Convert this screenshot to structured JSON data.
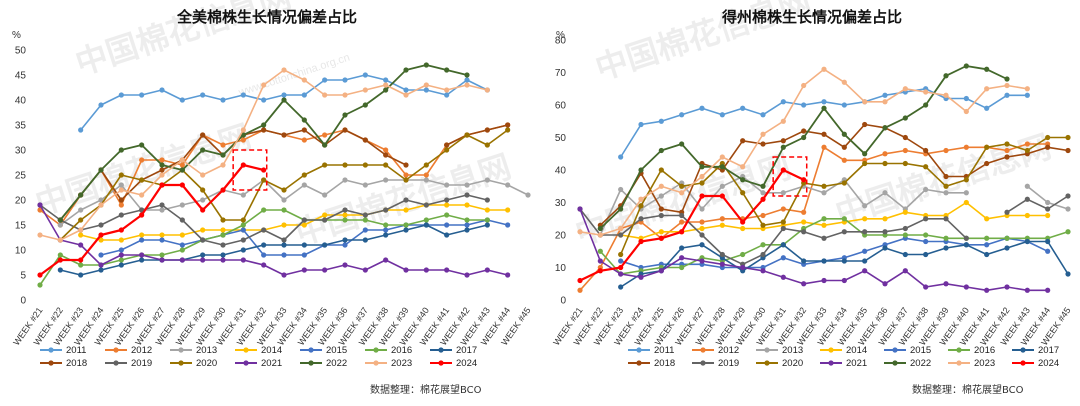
{
  "colors": {
    "2011": "#5b9bd5",
    "2012": "#ed7d31",
    "2013": "#a5a5a5",
    "2014": "#ffc000",
    "2015": "#4472c4",
    "2016": "#70ad47",
    "2017": "#255e91",
    "2018": "#9e480e",
    "2019": "#636363",
    "2020": "#997300",
    "2021": "#7030a0",
    "2022": "#43682b",
    "2023": "#f4b183",
    "2024": "#ff0000"
  },
  "watermark": {
    "text": "中国棉花信息网",
    "url": "www.cottonchina.org.cn"
  },
  "chart_data": [
    {
      "type": "line",
      "title": "全美棉株生长情况偏差占比",
      "unit": "%",
      "ylim": [
        0,
        50
      ],
      "yticks": [
        0,
        5,
        10,
        15,
        20,
        25,
        30,
        35,
        40,
        45,
        50
      ],
      "x": [
        "WEEK #21",
        "WEEK #22",
        "WEEK #23",
        "WEEK #24",
        "WEEK #25",
        "WEEK #26",
        "WEEK #27",
        "WEEK #28",
        "WEEK #29",
        "WEEK #30",
        "WEEK #31",
        "WEEK #32",
        "WEEK #33",
        "WEEK #34",
        "WEEK #35",
        "WEEK #36",
        "WEEK #37",
        "WEEK #38",
        "WEEK #39",
        "WEEK #40",
        "WEEK #41",
        "WEEK #42",
        "WEEK #43",
        "WEEK #44",
        "WEEK #45"
      ],
      "highlight": {
        "x_from": "WEEK #31",
        "x_to": "WEEK #32",
        "y_from": 22,
        "y_to": 30
      },
      "series": [
        {
          "name": "2011",
          "values": [
            null,
            null,
            34,
            39,
            41,
            41,
            42,
            40,
            41,
            40,
            41,
            40,
            41,
            41,
            44,
            44,
            45,
            44,
            42,
            42,
            41,
            44,
            42,
            null,
            null
          ]
        },
        {
          "name": "2012",
          "values": [
            18,
            15,
            21,
            26,
            19,
            28,
            28,
            27,
            33,
            31,
            32,
            34,
            33,
            32,
            33,
            34,
            32,
            30,
            25,
            25,
            31,
            33,
            34,
            35,
            null
          ]
        },
        {
          "name": "2013",
          "values": [
            null,
            15,
            18,
            20,
            23,
            18,
            18,
            19,
            20,
            22,
            21,
            24,
            20,
            23,
            21,
            24,
            23,
            24,
            24,
            24,
            23,
            23,
            24,
            23,
            21
          ]
        },
        {
          "name": "2014",
          "values": [
            null,
            null,
            13,
            12,
            12,
            13,
            13,
            13,
            14,
            14,
            14,
            14,
            15,
            15,
            17,
            17,
            17,
            18,
            18,
            19,
            19,
            19,
            18,
            18,
            null
          ]
        },
        {
          "name": "2015",
          "values": [
            null,
            null,
            null,
            9,
            10,
            12,
            12,
            11,
            12,
            13,
            14,
            9,
            9,
            9,
            11,
            11,
            14,
            14,
            15,
            15,
            15,
            15,
            16,
            15,
            null
          ]
        },
        {
          "name": "2016",
          "values": [
            3,
            9,
            7,
            7,
            8,
            9,
            9,
            10,
            12,
            13,
            15,
            18,
            18,
            16,
            16,
            16,
            16,
            15,
            15,
            16,
            17,
            16,
            16,
            null,
            null
          ]
        },
        {
          "name": "2017",
          "values": [
            null,
            6,
            5,
            6,
            7,
            8,
            8,
            8,
            9,
            9,
            10,
            11,
            11,
            11,
            11,
            12,
            12,
            13,
            14,
            15,
            13,
            14,
            15,
            null,
            null
          ]
        },
        {
          "name": "2018",
          "values": [
            null,
            16,
            21,
            26,
            20,
            24,
            26,
            28,
            33,
            29,
            33,
            34,
            33,
            34,
            31,
            34,
            32,
            29,
            27,
            null,
            31,
            33,
            34,
            35,
            null
          ]
        },
        {
          "name": "2019",
          "values": [
            19,
            16,
            14,
            15,
            17,
            18,
            19,
            16,
            12,
            11,
            12,
            14,
            12,
            16,
            16,
            18,
            17,
            18,
            20,
            19,
            20,
            21,
            20,
            null,
            null
          ]
        },
        {
          "name": "2020",
          "values": [
            null,
            12,
            16,
            19,
            25,
            24,
            23,
            26,
            22,
            16,
            16,
            24,
            22,
            25,
            27,
            27,
            27,
            27,
            24,
            27,
            30,
            33,
            31,
            34,
            null
          ]
        },
        {
          "name": "2021",
          "values": [
            19,
            12,
            11,
            7,
            9,
            9,
            8,
            8,
            8,
            8,
            8,
            7,
            5,
            6,
            6,
            7,
            6,
            8,
            6,
            6,
            6,
            5,
            6,
            5,
            null
          ]
        },
        {
          "name": "2022",
          "values": [
            null,
            16,
            21,
            26,
            30,
            31,
            27,
            26,
            30,
            29,
            33,
            35,
            40,
            36,
            31,
            37,
            39,
            42,
            46,
            47,
            46,
            45,
            null,
            null,
            null
          ]
        },
        {
          "name": "2023",
          "values": [
            13,
            12,
            14,
            19,
            22,
            21,
            25,
            28,
            25,
            27,
            34,
            43,
            46,
            44,
            41,
            41,
            42,
            43,
            41,
            43,
            42,
            43,
            42,
            null,
            null
          ]
        },
        {
          "name": "2024",
          "values": [
            5,
            8,
            8,
            13,
            14,
            17,
            23,
            23,
            18,
            22,
            27,
            26,
            null,
            null,
            null,
            null,
            null,
            null,
            null,
            null,
            null,
            null,
            null,
            null,
            null
          ]
        }
      ]
    },
    {
      "type": "line",
      "title": "得州棉株生长情况偏差占比",
      "unit": "%",
      "ylim": [
        0,
        80
      ],
      "yticks": [
        0,
        10,
        20,
        30,
        40,
        50,
        60,
        70,
        80
      ],
      "x": [
        "WEEK #21",
        "WEEK #22",
        "WEEK #23",
        "WEEK #24",
        "WEEK #25",
        "WEEK #26",
        "WEEK #27",
        "WEEK #28",
        "WEEK #29",
        "WEEK #30",
        "WEEK #31",
        "WEEK #32",
        "WEEK #33",
        "WEEK #34",
        "WEEK #35",
        "WEEK #36",
        "WEEK #37",
        "WEEK #38",
        "WEEK #39",
        "WEEK #40",
        "WEEK #41",
        "WEEK #42",
        "WEEK #43",
        "WEEK #44",
        "WEEK #45"
      ],
      "highlight": {
        "x_from": "WEEK #31",
        "x_to": "WEEK #32",
        "y_from": 32,
        "y_to": 44
      },
      "series": [
        {
          "name": "2011",
          "values": [
            null,
            null,
            44,
            54,
            55,
            57,
            59,
            57,
            59,
            57,
            61,
            60,
            61,
            60,
            61,
            63,
            64,
            65,
            62,
            62,
            59,
            63,
            63,
            null,
            null
          ]
        },
        {
          "name": "2012",
          "values": [
            3,
            10,
            22,
            24,
            19,
            24,
            24,
            25,
            25,
            26,
            28,
            27,
            47,
            43,
            43,
            45,
            46,
            45,
            46,
            47,
            47,
            46,
            48,
            48,
            null
          ]
        },
        {
          "name": "2013",
          "values": [
            null,
            20,
            34,
            28,
            32,
            36,
            28,
            35,
            38,
            33,
            33,
            35,
            33,
            37,
            29,
            33,
            28,
            34,
            33,
            33,
            null,
            null,
            35,
            30,
            28
          ]
        },
        {
          "name": "2014",
          "values": [
            null,
            null,
            20,
            19,
            21,
            21,
            22,
            23,
            22,
            22,
            23,
            24,
            23,
            24,
            25,
            25,
            27,
            26,
            26,
            30,
            25,
            26,
            26,
            26,
            null
          ]
        },
        {
          "name": "2015",
          "values": [
            null,
            null,
            12,
            10,
            11,
            11,
            11,
            10,
            10,
            10,
            13,
            11,
            12,
            13,
            15,
            17,
            19,
            18,
            18,
            17,
            17,
            19,
            18,
            15,
            null
          ]
        },
        {
          "name": "2016",
          "values": [
            null,
            15,
            8,
            9,
            10,
            10,
            13,
            12,
            14,
            17,
            17,
            22,
            25,
            25,
            20,
            20,
            20,
            20,
            19,
            19,
            19,
            19,
            19,
            19,
            21
          ]
        },
        {
          "name": "2017",
          "values": [
            null,
            null,
            4,
            8,
            9,
            16,
            17,
            13,
            9,
            13,
            17,
            12,
            12,
            12,
            12,
            16,
            14,
            14,
            16,
            17,
            14,
            16,
            18,
            18,
            8
          ]
        },
        {
          "name": "2018",
          "values": [
            null,
            23,
            29,
            39,
            28,
            27,
            42,
            40,
            49,
            48,
            49,
            52,
            51,
            47,
            54,
            53,
            50,
            46,
            38,
            38,
            42,
            44,
            45,
            47,
            46
          ]
        },
        {
          "name": "2019",
          "values": [
            28,
            20,
            20,
            25,
            26,
            26,
            20,
            14,
            11,
            14,
            22,
            21,
            19,
            21,
            21,
            21,
            22,
            25,
            25,
            19,
            null,
            27,
            31,
            28,
            32
          ]
        },
        {
          "name": "2020",
          "values": [
            null,
            null,
            14,
            29,
            40,
            35,
            36,
            42,
            33,
            23,
            24,
            36,
            35,
            36,
            42,
            42,
            42,
            41,
            35,
            37,
            47,
            48,
            46,
            50,
            50
          ]
        },
        {
          "name": "2021",
          "values": [
            28,
            12,
            8,
            7,
            9,
            13,
            12,
            11,
            10,
            9,
            7,
            5,
            6,
            6,
            9,
            5,
            9,
            4,
            5,
            4,
            3,
            4,
            3,
            3,
            null
          ]
        },
        {
          "name": "2022",
          "values": [
            null,
            22,
            28,
            40,
            46,
            48,
            41,
            41,
            37,
            35,
            47,
            50,
            59,
            51,
            45,
            53,
            56,
            60,
            69,
            72,
            71,
            68,
            null,
            null,
            null
          ]
        },
        {
          "name": "2023",
          "values": [
            21,
            20,
            22,
            31,
            35,
            33,
            38,
            44,
            41,
            51,
            55,
            66,
            71,
            67,
            61,
            61,
            65,
            64,
            63,
            58,
            65,
            66,
            65,
            null,
            null
          ]
        },
        {
          "name": "2024",
          "values": [
            6,
            9,
            10,
            18,
            19,
            21,
            32,
            32,
            24,
            31,
            40,
            37,
            null,
            null,
            null,
            null,
            null,
            null,
            null,
            null,
            null,
            null,
            null,
            null,
            null
          ]
        }
      ]
    }
  ],
  "legend": {
    "row1": [
      "2011",
      "2012",
      "2013",
      "2014",
      "2015",
      "2016",
      "2017"
    ],
    "row2": [
      "2018",
      "2019",
      "2020",
      "2021",
      "2022",
      "2023",
      "2024"
    ]
  },
  "source_text": "数据整理：棉花展望BCO"
}
